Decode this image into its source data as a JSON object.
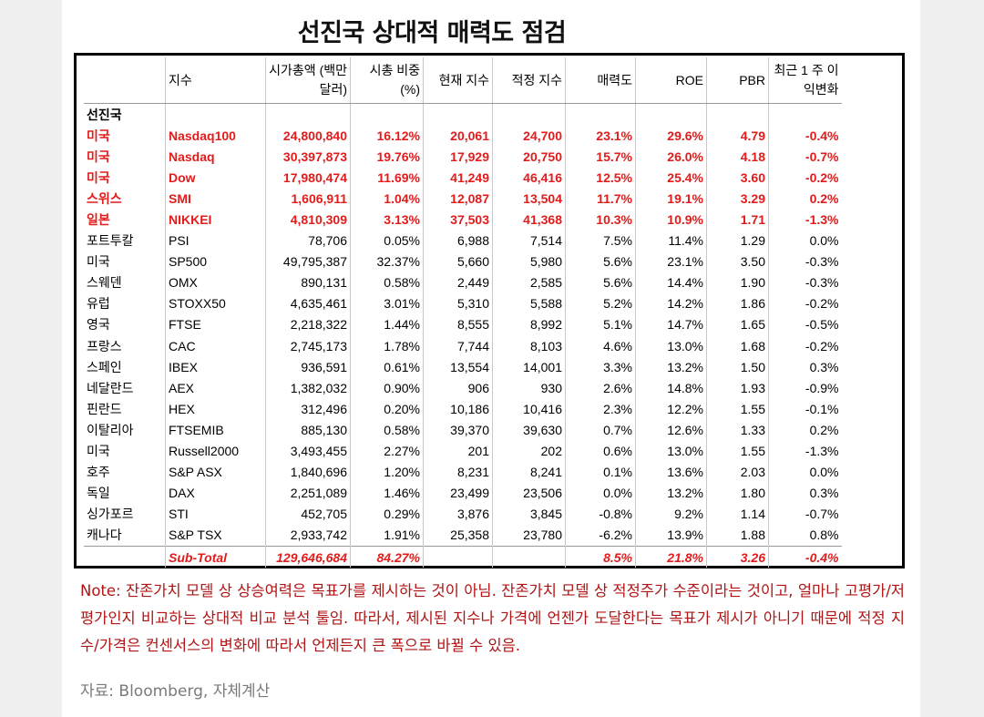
{
  "title": "선진국 상대적 매력도 점검",
  "table": {
    "headers": [
      "",
      "지수",
      "시가총액 (백만 달러)",
      "시총 비중 (%)",
      "현재 지수",
      "적정 지수",
      "매력도",
      "ROE",
      "PBR",
      "최근 1 주 이 익변화"
    ],
    "section_label": "선진국",
    "rows": [
      {
        "c": [
          "미국",
          "Nasdaq100",
          "24,800,840",
          "16.12%",
          "20,061",
          "24,700",
          "23.1%",
          "29.6%",
          "4.79",
          "-0.4%"
        ],
        "hl": true
      },
      {
        "c": [
          "미국",
          "Nasdaq",
          "30,397,873",
          "19.76%",
          "17,929",
          "20,750",
          "15.7%",
          "26.0%",
          "4.18",
          "-0.7%"
        ],
        "hl": true
      },
      {
        "c": [
          "미국",
          "Dow",
          "17,980,474",
          "11.69%",
          "41,249",
          "46,416",
          "12.5%",
          "25.4%",
          "3.60",
          "-0.2%"
        ],
        "hl": true
      },
      {
        "c": [
          "스위스",
          "SMI",
          "1,606,911",
          "1.04%",
          "12,087",
          "13,504",
          "11.7%",
          "19.1%",
          "3.29",
          "0.2%"
        ],
        "hl": true
      },
      {
        "c": [
          "일본",
          "NIKKEI",
          "4,810,309",
          "3.13%",
          "37,503",
          "41,368",
          "10.3%",
          "10.9%",
          "1.71",
          "-1.3%"
        ],
        "hl": true
      },
      {
        "c": [
          "포트투칼",
          "PSI",
          "78,706",
          "0.05%",
          "6,988",
          "7,514",
          "7.5%",
          "11.4%",
          "1.29",
          "0.0%"
        ],
        "hl": false
      },
      {
        "c": [
          "미국",
          "SP500",
          "49,795,387",
          "32.37%",
          "5,660",
          "5,980",
          "5.6%",
          "23.1%",
          "3.50",
          "-0.3%"
        ],
        "hl": false
      },
      {
        "c": [
          "스웨덴",
          "OMX",
          "890,131",
          "0.58%",
          "2,449",
          "2,585",
          "5.6%",
          "14.4%",
          "1.90",
          "-0.3%"
        ],
        "hl": false
      },
      {
        "c": [
          "유럽",
          "STOXX50",
          "4,635,461",
          "3.01%",
          "5,310",
          "5,588",
          "5.2%",
          "14.2%",
          "1.86",
          "-0.2%"
        ],
        "hl": false
      },
      {
        "c": [
          "영국",
          "FTSE",
          "2,218,322",
          "1.44%",
          "8,555",
          "8,992",
          "5.1%",
          "14.7%",
          "1.65",
          "-0.5%"
        ],
        "hl": false
      },
      {
        "c": [
          "프랑스",
          "CAC",
          "2,745,173",
          "1.78%",
          "7,744",
          "8,103",
          "4.6%",
          "13.0%",
          "1.68",
          "-0.2%"
        ],
        "hl": false
      },
      {
        "c": [
          "스페인",
          "IBEX",
          "936,591",
          "0.61%",
          "13,554",
          "14,001",
          "3.3%",
          "13.2%",
          "1.50",
          "0.3%"
        ],
        "hl": false
      },
      {
        "c": [
          "네달란드",
          "AEX",
          "1,382,032",
          "0.90%",
          "906",
          "930",
          "2.6%",
          "14.8%",
          "1.93",
          "-0.9%"
        ],
        "hl": false
      },
      {
        "c": [
          "핀란드",
          "HEX",
          "312,496",
          "0.20%",
          "10,186",
          "10,416",
          "2.3%",
          "12.2%",
          "1.55",
          "-0.1%"
        ],
        "hl": false
      },
      {
        "c": [
          "이탈리아",
          "FTSEMIB",
          "885,130",
          "0.58%",
          "39,370",
          "39,630",
          "0.7%",
          "12.6%",
          "1.33",
          "0.2%"
        ],
        "hl": false
      },
      {
        "c": [
          "미국",
          "Russell2000",
          "3,493,455",
          "2.27%",
          "201",
          "202",
          "0.6%",
          "13.0%",
          "1.55",
          "-1.3%"
        ],
        "hl": false
      },
      {
        "c": [
          "호주",
          "S&P ASX",
          "1,840,696",
          "1.20%",
          "8,231",
          "8,241",
          "0.1%",
          "13.6%",
          "2.03",
          "0.0%"
        ],
        "hl": false
      },
      {
        "c": [
          "독일",
          "DAX",
          "2,251,089",
          "1.46%",
          "23,499",
          "23,506",
          "0.0%",
          "13.2%",
          "1.80",
          "0.3%"
        ],
        "hl": false
      },
      {
        "c": [
          "싱가포르",
          "STI",
          "452,705",
          "0.29%",
          "3,876",
          "3,845",
          "-0.8%",
          "9.2%",
          "1.14",
          "-0.7%"
        ],
        "hl": false
      },
      {
        "c": [
          "캐나다",
          "S&P TSX",
          "2,933,742",
          "1.91%",
          "25,358",
          "23,780",
          "-6.2%",
          "13.9%",
          "1.88",
          "0.8%"
        ],
        "hl": false
      }
    ],
    "subtotal": [
      "",
      "Sub-Total",
      "129,646,684",
      "84.27%",
      "",
      "",
      "8.5%",
      "21.8%",
      "3.26",
      "-0.4%"
    ]
  },
  "note": "Note: 잔존가치 모델 상 상승여력은 목표가를 제시하는 것이 아님. 잔존가치 모델 상 적정주가 수준이라는 것이고, 얼마나 고평가/저평가인지 비교하는 상대적 비교 분석 툴임. 따라서, 제시된 지수나 가격에 언젠가 도달한다는 목표가 제시가 아니기 때문에 적정 지수/가격은 컨센서스의 변화에 따라서 언제든지 큰 폭으로 바뀔 수 있음.",
  "source": "자료: Bloomberg, 자체계산",
  "colors": {
    "highlight": "#e31b1b",
    "note": "#b01414",
    "source": "#7a7a7a"
  }
}
